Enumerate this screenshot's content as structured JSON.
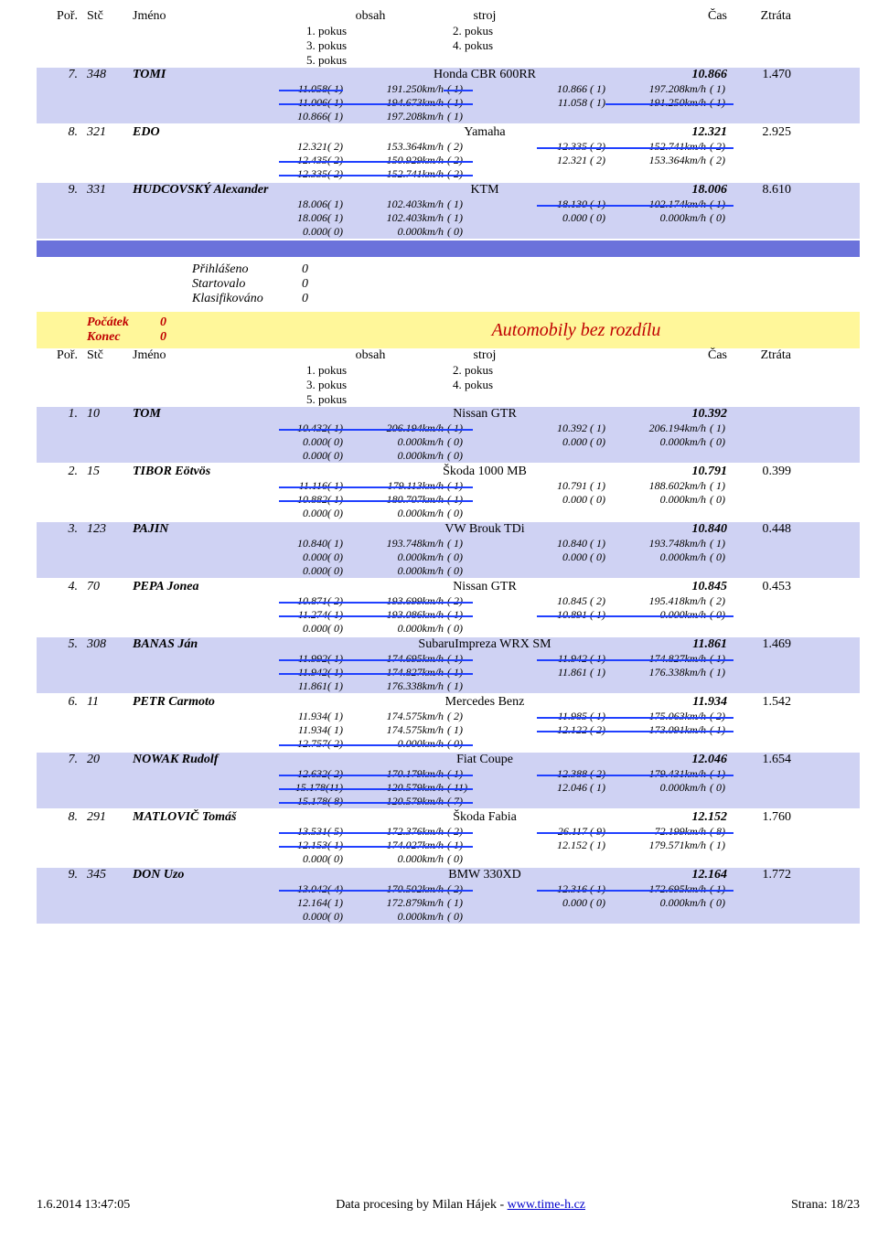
{
  "headers": {
    "por": "Poř.",
    "stc": "Stč",
    "jmeno": "Jméno",
    "obsah": "obsah",
    "stroj": "stroj",
    "cas": "Čas",
    "ztrata": "Ztráta"
  },
  "pokus": {
    "p1": "1. pokus",
    "p2": "2. pokus",
    "p3": "3. pokus",
    "p4": "4. pokus",
    "p5": "5. pokus"
  },
  "top": [
    {
      "por": "7.",
      "stc": "348",
      "jmeno": "TOMI",
      "stroj": "Honda CBR 600RR",
      "cas": "10.866",
      "ztrata": "1.470",
      "bg": "bar-light",
      "rows": [
        [
          "11.058( 1)",
          "191.250km/h",
          "( 1)",
          "10.866 ( 1)",
          "197.208km/h",
          "( 1)",
          true,
          false,
          true,
          false,
          false,
          false
        ],
        [
          "11.006( 1)",
          "194.673km/h",
          "( 1)",
          "11.058 ( 1)",
          "191.250km/h",
          "( 1)",
          true,
          true,
          true,
          false,
          true,
          true
        ],
        [
          "10.866( 1)",
          "197.208km/h",
          "( 1)",
          "",
          "",
          "",
          false,
          false,
          false,
          false,
          false,
          false
        ]
      ]
    },
    {
      "por": "8.",
      "stc": "321",
      "jmeno": "EDO",
      "stroj": "Yamaha",
      "cas": "12.321",
      "ztrata": "2.925",
      "bg": "bar-white",
      "rows": [
        [
          "12.321( 2)",
          "153.364km/h",
          "( 2)",
          "12.335 ( 2)",
          "152.741km/h",
          "( 2)",
          false,
          false,
          false,
          true,
          true,
          true
        ],
        [
          "12.435( 2)",
          "150.929km/h",
          "( 2)",
          "12.321 ( 2)",
          "153.364km/h",
          "( 2)",
          true,
          true,
          true,
          false,
          false,
          false
        ],
        [
          "12.335( 2)",
          "152.741km/h",
          "( 2)",
          "",
          "",
          "",
          true,
          true,
          true,
          false,
          false,
          false
        ]
      ]
    },
    {
      "por": "9.",
      "stc": "331",
      "jmeno": "HUDCOVSKÝ Alexander",
      "stroj": "KTM",
      "cas": "18.006",
      "ztrata": "8.610",
      "bg": "bar-light",
      "rows": [
        [
          "18.006( 1)",
          "102.403km/h",
          "( 1)",
          "18.130 ( 1)",
          "102.174km/h",
          "( 1)",
          false,
          false,
          false,
          true,
          true,
          true
        ],
        [
          "18.006( 1)",
          "102.403km/h",
          "( 1)",
          "0.000 ( 0)",
          "0.000km/h",
          "( 0)",
          false,
          false,
          false,
          false,
          false,
          false
        ],
        [
          "0.000( 0)",
          "0.000km/h",
          "( 0)",
          "",
          "",
          "",
          false,
          false,
          false,
          false,
          false,
          false
        ]
      ]
    }
  ],
  "startbox": {
    "prihlaseno": "Přihlášeno",
    "startovalo": "Startovalo",
    "klasifikovano": "Klasifikováno",
    "v1": "0",
    "v2": "0",
    "v3": "0"
  },
  "section_title": "Automobily bez rozdílu",
  "pocatek": {
    "l1": "Počátek",
    "l2": "Konec",
    "v1": "0",
    "v2": "0"
  },
  "bottom": [
    {
      "por": "1.",
      "stc": "10",
      "jmeno": "TOM",
      "stroj": "Nissan GTR",
      "cas": "10.392",
      "ztrata": "",
      "bg": "bar-light",
      "rows": [
        [
          "10.432( 1)",
          "206.194km/h",
          "( 1)",
          "10.392 ( 1)",
          "206.194km/h",
          "( 1)",
          true,
          true,
          true,
          false,
          false,
          false
        ],
        [
          "0.000( 0)",
          "0.000km/h",
          "( 0)",
          "0.000 ( 0)",
          "0.000km/h",
          "( 0)",
          false,
          false,
          false,
          false,
          false,
          false
        ],
        [
          "0.000( 0)",
          "0.000km/h",
          "( 0)",
          "",
          "",
          "",
          false,
          false,
          false,
          false,
          false,
          false
        ]
      ]
    },
    {
      "por": "2.",
      "stc": "15",
      "jmeno": "TIBOR Eötvös",
      "stroj": "Škoda 1000 MB",
      "cas": "10.791",
      "ztrata": "0.399",
      "bg": "bar-white",
      "rows": [
        [
          "11.116( 1)",
          "179.113km/h",
          "( 1)",
          "10.791 ( 1)",
          "188.602km/h",
          "( 1)",
          true,
          true,
          true,
          false,
          false,
          false
        ],
        [
          "10.882( 1)",
          "180.707km/h",
          "( 1)",
          "0.000 ( 0)",
          "0.000km/h",
          "( 0)",
          true,
          true,
          true,
          false,
          false,
          false
        ],
        [
          "0.000( 0)",
          "0.000km/h",
          "( 0)",
          "",
          "",
          "",
          false,
          false,
          false,
          false,
          false,
          false
        ]
      ]
    },
    {
      "por": "3.",
      "stc": "123",
      "jmeno": "PAJIN",
      "stroj": "VW Brouk TDi",
      "cas": "10.840",
      "ztrata": "0.448",
      "bg": "bar-light",
      "rows": [
        [
          "10.840( 1)",
          "193.748km/h",
          "( 1)",
          "10.840 ( 1)",
          "193.748km/h",
          "( 1)",
          false,
          false,
          false,
          false,
          false,
          false
        ],
        [
          "0.000( 0)",
          "0.000km/h",
          "( 0)",
          "0.000 ( 0)",
          "0.000km/h",
          "( 0)",
          false,
          false,
          false,
          false,
          false,
          false
        ],
        [
          "0.000( 0)",
          "0.000km/h",
          "( 0)",
          "",
          "",
          "",
          false,
          false,
          false,
          false,
          false,
          false
        ]
      ]
    },
    {
      "por": "4.",
      "stc": "70",
      "jmeno": "PEPA Jonea",
      "stroj": "Nissan GTR",
      "cas": "10.845",
      "ztrata": "0.453",
      "bg": "bar-white",
      "rows": [
        [
          "10.871( 2)",
          "193.699km/h",
          "( 2)",
          "10.845 ( 2)",
          "195.418km/h",
          "( 2)",
          true,
          true,
          true,
          false,
          false,
          false
        ],
        [
          "11.274( 1)",
          "193.086km/h",
          "( 1)",
          "10.891 ( 1)",
          "0.000km/h",
          "( 0)",
          true,
          true,
          true,
          true,
          true,
          true
        ],
        [
          "0.000( 0)",
          "0.000km/h",
          "( 0)",
          "",
          "",
          "",
          false,
          false,
          false,
          false,
          false,
          false
        ]
      ]
    },
    {
      "por": "5.",
      "stc": "308",
      "jmeno": "BANAS Ján",
      "stroj": "SubaruImpreza WRX SM",
      "cas": "11.861",
      "ztrata": "1.469",
      "bg": "bar-light",
      "rows": [
        [
          "11.992( 1)",
          "174.695km/h",
          "( 1)",
          "11.942 ( 1)",
          "174.827km/h",
          "( 1)",
          true,
          true,
          true,
          true,
          true,
          true
        ],
        [
          "11.942( 1)",
          "174.827km/h",
          "( 1)",
          "11.861 ( 1)",
          "176.338km/h",
          "( 1)",
          true,
          true,
          true,
          false,
          false,
          false
        ],
        [
          "11.861( 1)",
          "176.338km/h",
          "( 1)",
          "",
          "",
          "",
          false,
          false,
          false,
          false,
          false,
          false
        ]
      ]
    },
    {
      "por": "6.",
      "stc": "11",
      "jmeno": "PETR Carmoto",
      "stroj": "Mercedes Benz",
      "cas": "11.934",
      "ztrata": "1.542",
      "bg": "bar-white",
      "rows": [
        [
          "11.934( 1)",
          "174.575km/h",
          "( 2)",
          "11.985 ( 1)",
          "175.063km/h",
          "( 2)",
          false,
          false,
          false,
          true,
          true,
          true
        ],
        [
          "11.934( 1)",
          "174.575km/h",
          "( 1)",
          "12.122 ( 2)",
          "173.091km/h",
          "( 1)",
          false,
          false,
          false,
          true,
          true,
          true
        ],
        [
          "12.757( 2)",
          "0.000km/h",
          "( 0)",
          "",
          "",
          "",
          true,
          true,
          true,
          false,
          false,
          false
        ]
      ]
    },
    {
      "por": "7.",
      "stc": "20",
      "jmeno": "NOWAK Rudolf",
      "stroj": "Fiat Coupe",
      "cas": "12.046",
      "ztrata": "1.654",
      "bg": "bar-light",
      "rows": [
        [
          "12.632( 2)",
          "170.179km/h",
          "( 1)",
          "12.388 ( 2)",
          "179.431km/h",
          "( 1)",
          true,
          true,
          true,
          true,
          true,
          true
        ],
        [
          "15.178(11)",
          "120.579km/h",
          "( 11)",
          "12.046 ( 1)",
          "0.000km/h",
          "( 0)",
          true,
          true,
          true,
          false,
          false,
          false
        ],
        [
          "15.178( 8)",
          "120.579km/h",
          "( 7)",
          "",
          "",
          "",
          true,
          true,
          true,
          false,
          false,
          false
        ]
      ]
    },
    {
      "por": "8.",
      "stc": "291",
      "jmeno": "MATLOVIČ Tomáš",
      "stroj": "Škoda Fabia",
      "cas": "12.152",
      "ztrata": "1.760",
      "bg": "bar-white",
      "rows": [
        [
          "13.531( 5)",
          "172.376km/h",
          "( 2)",
          "26.117 ( 9)",
          "72.199km/h",
          "( 8)",
          true,
          true,
          true,
          true,
          true,
          true
        ],
        [
          "12.153( 1)",
          "174.027km/h",
          "( 1)",
          "12.152 ( 1)",
          "179.571km/h",
          "( 1)",
          true,
          true,
          true,
          false,
          false,
          false
        ],
        [
          "0.000( 0)",
          "0.000km/h",
          "( 0)",
          "",
          "",
          "",
          false,
          false,
          false,
          false,
          false,
          false
        ]
      ]
    },
    {
      "por": "9.",
      "stc": "345",
      "jmeno": "DON Uzo",
      "stroj": "BMW 330XD",
      "cas": "12.164",
      "ztrata": "1.772",
      "bg": "bar-light",
      "rows": [
        [
          "13.042( 4)",
          "170.502km/h",
          "( 2)",
          "12.316 ( 1)",
          "172.695km/h",
          "( 1)",
          true,
          true,
          true,
          true,
          true,
          true
        ],
        [
          "12.164( 1)",
          "172.879km/h",
          "( 1)",
          "0.000 ( 0)",
          "0.000km/h",
          "( 0)",
          false,
          false,
          false,
          false,
          false,
          false
        ],
        [
          "0.000( 0)",
          "0.000km/h",
          "( 0)",
          "",
          "",
          "",
          false,
          false,
          false,
          false,
          false,
          false
        ]
      ]
    }
  ],
  "footer": {
    "left": "1.6.2014 13:47:05",
    "mid_pre": "Data procesing by Milan Hájek - ",
    "link": "www.time-h.cz",
    "right": "Strana: 18/23"
  }
}
